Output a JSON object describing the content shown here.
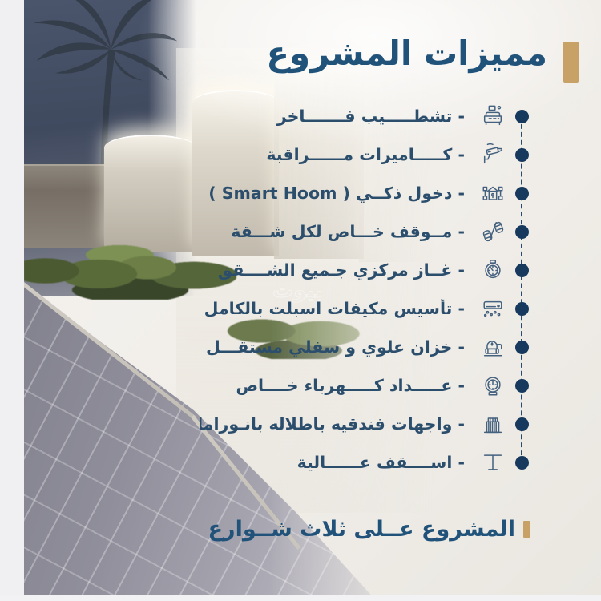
{
  "page": {
    "title": "مميزات المشروع",
    "footer_title": "المشروع عــلى ثلاث شــوارع",
    "watermark": "بيوت"
  },
  "features": [
    {
      "label": "- تشطـــــيب فـــــــاخر",
      "icon": "sofa-icon"
    },
    {
      "label": "- كـــــاميرات مــــــراقبة",
      "icon": "cctv-camera-icon"
    },
    {
      "label": "- دخول ذكــي ( Smart Hoom )",
      "icon": "smart-entry-icon"
    },
    {
      "label": "- مــوقف خـــاص لكل شـــقة",
      "icon": "private-parking-icon"
    },
    {
      "label": "- غــاز مركزي جـميع الشــــقق",
      "icon": "gas-meter-icon"
    },
    {
      "label": "- تأسيس مكيفات اسبلت بالكامل",
      "icon": "air-conditioner-icon"
    },
    {
      "label": "- خزان علوي و سفلي مستقـــل",
      "icon": "water-tank-icon"
    },
    {
      "label": "- عـــــداد كـــــهرباء خــــاص",
      "icon": "electricity-meter-icon"
    },
    {
      "label": "- واجهات فندقيه باطلاله بانـوراما",
      "icon": "building-facade-icon"
    },
    {
      "label": "- اســــقف عــــــالية",
      "icon": "high-ceiling-icon"
    }
  ],
  "colors": {
    "title_blue": "#20527a",
    "text_blue": "#2c4e6d",
    "dot_navy": "#17395e",
    "accent_gold": "#c7a166",
    "panel_background": "#f2efeb",
    "sky_navy": "#424c61",
    "road_grey": "#9b99a5"
  }
}
